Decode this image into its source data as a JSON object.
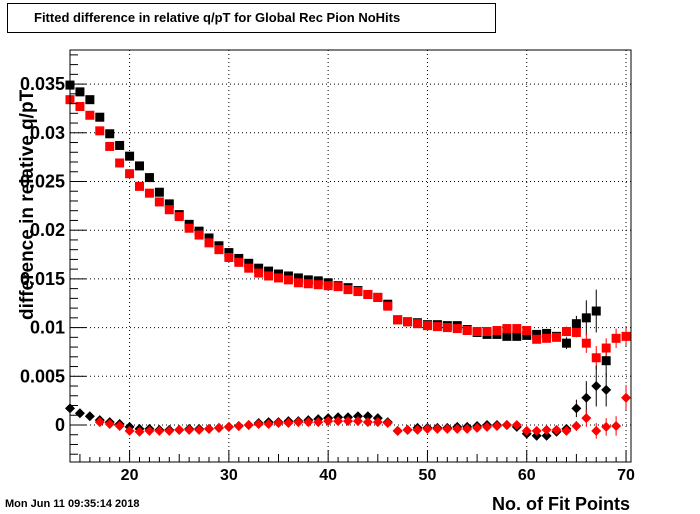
{
  "title": "Fitted difference in relative q/pT for Global Rec Pion NoHits",
  "footer": "Mon Jun 11 09:35:14 2018",
  "chart_data": {
    "type": "scatter",
    "title": "Fitted difference in relative q/pT for Global Rec Pion NoHits",
    "xlabel": "No. of Fit Points",
    "ylabel": "difference in relative q/pT",
    "xlim": [
      14,
      70.5
    ],
    "ylim": [
      -0.0038,
      0.0385
    ],
    "xticks": [
      "20",
      "30",
      "40",
      "50",
      "60",
      "70"
    ],
    "yticks": [
      "0",
      "0.005",
      "0.01",
      "0.015",
      "0.02",
      "0.025",
      "0.03",
      "0.035"
    ],
    "grid": true,
    "colors": {
      "black": "#000000",
      "red": "#ff0000"
    },
    "series": [
      {
        "marker": "square",
        "color": "#000000",
        "x": [
          14,
          15,
          16,
          17,
          18,
          19,
          20,
          21,
          22,
          23,
          24,
          25,
          26,
          27,
          28,
          29,
          30,
          31,
          32,
          33,
          34,
          35,
          36,
          37,
          38,
          39,
          40,
          41,
          42,
          43,
          44,
          45,
          46,
          47,
          48,
          49,
          50,
          51,
          52,
          53,
          54,
          55,
          56,
          57,
          58,
          59,
          60,
          61,
          62,
          63,
          64,
          65,
          66,
          67,
          68,
          69,
          70
        ],
        "y": [
          0.0349,
          0.0342,
          0.0334,
          0.0316,
          0.0299,
          0.0287,
          0.0276,
          0.0266,
          0.0254,
          0.0239,
          0.0227,
          0.0216,
          0.0206,
          0.0199,
          0.0192,
          0.0184,
          0.0177,
          0.0171,
          0.0166,
          0.0161,
          0.0158,
          0.0155,
          0.0153,
          0.0151,
          0.0149,
          0.0148,
          0.0146,
          0.0143,
          0.0141,
          0.0138,
          0.0134,
          0.0131,
          0.0124,
          0.0108,
          0.0106,
          0.0105,
          0.0103,
          0.0103,
          0.0102,
          0.0102,
          0.0098,
          0.0095,
          0.0093,
          0.0093,
          0.0091,
          0.0091,
          0.0092,
          0.0093,
          0.0094,
          0.0091,
          0.0084,
          0.0104,
          0.011,
          0.0117,
          0.0066,
          null,
          null
        ],
        "err": [
          0,
          0,
          0,
          0,
          0,
          0,
          0,
          0,
          0,
          0,
          0,
          0,
          0,
          0,
          0,
          0,
          0,
          0,
          0,
          0,
          0,
          0,
          0,
          0,
          0,
          0,
          0,
          0,
          0,
          0,
          0,
          0,
          0,
          0,
          0,
          0,
          0,
          0,
          0,
          0,
          0,
          0,
          0,
          0,
          0,
          0,
          0,
          0,
          0,
          0,
          0.0006,
          0.0008,
          0.0018,
          0.0022,
          0.0015,
          0,
          0
        ]
      },
      {
        "marker": "square",
        "color": "#ff0000",
        "x": [
          14,
          15,
          16,
          17,
          18,
          19,
          20,
          21,
          22,
          23,
          24,
          25,
          26,
          27,
          28,
          29,
          30,
          31,
          32,
          33,
          34,
          35,
          36,
          37,
          38,
          39,
          40,
          41,
          42,
          43,
          44,
          45,
          46,
          47,
          48,
          49,
          50,
          51,
          52,
          53,
          54,
          55,
          56,
          57,
          58,
          59,
          60,
          61,
          62,
          63,
          64,
          65,
          66,
          67,
          68,
          69,
          70
        ],
        "y": [
          0.0334,
          0.0327,
          0.0318,
          0.0302,
          0.0286,
          0.0269,
          0.0258,
          0.0245,
          0.0238,
          0.0229,
          0.0221,
          0.0214,
          0.0202,
          0.0195,
          0.0187,
          0.018,
          0.0172,
          0.0167,
          0.0161,
          0.0156,
          0.0153,
          0.0151,
          0.0149,
          0.0146,
          0.0145,
          0.0144,
          0.0143,
          0.0142,
          0.0139,
          0.0137,
          0.0134,
          0.0131,
          0.0122,
          0.0108,
          0.0106,
          0.0104,
          0.0102,
          0.0101,
          0.01,
          0.0099,
          0.0097,
          0.0096,
          0.0096,
          0.0097,
          0.0099,
          0.0099,
          0.0097,
          0.0088,
          0.0089,
          0.009,
          0.0096,
          0.0095,
          0.0084,
          0.0069,
          0.0079,
          0.0089,
          0.0091
        ],
        "err": [
          0,
          0,
          0,
          0,
          0,
          0,
          0,
          0,
          0,
          0,
          0,
          0,
          0,
          0,
          0,
          0,
          0,
          0,
          0,
          0,
          0,
          0,
          0,
          0,
          0,
          0,
          0,
          0,
          0,
          0,
          0,
          0,
          0,
          0,
          0,
          0,
          0,
          0,
          0,
          0,
          0,
          0,
          0,
          0,
          0,
          0,
          0,
          0,
          0,
          0,
          0.0005,
          0.0005,
          0.001,
          0.0012,
          0.001,
          0.001,
          0.001
        ]
      },
      {
        "marker": "diamond",
        "color": "#000000",
        "x": [
          14,
          15,
          16,
          17,
          18,
          19,
          20,
          21,
          22,
          23,
          24,
          25,
          26,
          27,
          28,
          29,
          30,
          31,
          32,
          33,
          34,
          35,
          36,
          37,
          38,
          39,
          40,
          41,
          42,
          43,
          44,
          45,
          46,
          47,
          48,
          49,
          50,
          51,
          52,
          53,
          54,
          55,
          56,
          57,
          58,
          59,
          60,
          61,
          62,
          63,
          64,
          65,
          66,
          67,
          68,
          69,
          70
        ],
        "y": [
          0.0017,
          0.0012,
          0.0009,
          0.0005,
          0.0003,
          0.0001,
          -0.0002,
          -0.0004,
          -0.0004,
          -0.0005,
          -0.0005,
          -0.0005,
          -0.0004,
          -0.0004,
          -0.0004,
          -0.0003,
          -0.0002,
          -0.0001,
          0.0,
          0.0002,
          0.0003,
          0.0003,
          0.0004,
          0.0004,
          0.0005,
          0.0006,
          0.0007,
          0.0008,
          0.0008,
          0.0009,
          0.0009,
          0.0007,
          0.0003,
          -0.0006,
          -0.0005,
          -0.0003,
          -0.0003,
          -0.0003,
          -0.0003,
          -0.0002,
          -0.0002,
          -0.0001,
          0.0,
          0.0,
          0.0,
          -0.0002,
          -0.0009,
          -0.0011,
          -0.0011,
          -0.0007,
          -0.0004,
          0.0017,
          0.0028,
          0.004,
          0.0036,
          null,
          null
        ],
        "err": [
          0,
          0,
          0,
          0,
          0,
          0,
          0,
          0,
          0,
          0,
          0,
          0,
          0,
          0,
          0,
          0,
          0,
          0,
          0,
          0,
          0,
          0,
          0,
          0,
          0,
          0,
          0,
          0,
          0,
          0,
          0,
          0,
          0,
          0,
          0,
          0,
          0,
          0,
          0,
          0,
          0,
          0,
          0,
          0,
          0,
          0,
          0,
          0,
          0,
          0,
          0.0004,
          0.0009,
          0.0017,
          0.0021,
          0.0017,
          0,
          0
        ]
      },
      {
        "marker": "diamond",
        "color": "#ff0000",
        "x": [
          14,
          15,
          16,
          17,
          18,
          19,
          20,
          21,
          22,
          23,
          24,
          25,
          26,
          27,
          28,
          29,
          30,
          31,
          32,
          33,
          34,
          35,
          36,
          37,
          38,
          39,
          40,
          41,
          42,
          43,
          44,
          45,
          46,
          47,
          48,
          49,
          50,
          51,
          52,
          53,
          54,
          55,
          56,
          57,
          58,
          59,
          60,
          61,
          62,
          63,
          64,
          65,
          66,
          67,
          68,
          69,
          70
        ],
        "y": [
          null,
          null,
          null,
          0.0003,
          0.0001,
          -0.0001,
          -0.0006,
          -0.0007,
          -0.0006,
          -0.0006,
          -0.0006,
          -0.0005,
          -0.0005,
          -0.0005,
          -0.0004,
          -0.0003,
          -0.0002,
          -0.0001,
          0.0,
          0.0001,
          0.0001,
          0.0002,
          0.0002,
          0.0003,
          0.0003,
          0.0003,
          0.0004,
          0.0004,
          0.0004,
          0.0004,
          0.0003,
          0.0003,
          0.0002,
          -0.0006,
          -0.0005,
          -0.0005,
          -0.0004,
          -0.0004,
          -0.0004,
          -0.0004,
          -0.0004,
          -0.0003,
          -0.0002,
          -0.0001,
          0.0,
          0.0,
          -0.0006,
          -0.0006,
          -0.0005,
          -0.0005,
          -0.0006,
          -0.0001,
          0.0007,
          -0.0006,
          -0.0002,
          -0.0001,
          0.0028
        ],
        "err": [
          0,
          0,
          0,
          0,
          0,
          0,
          0,
          0,
          0,
          0,
          0,
          0,
          0,
          0,
          0,
          0,
          0,
          0,
          0,
          0,
          0,
          0,
          0,
          0,
          0,
          0,
          0,
          0,
          0,
          0,
          0,
          0,
          0,
          0,
          0,
          0,
          0,
          0,
          0,
          0,
          0,
          0,
          0,
          0,
          0,
          0,
          0,
          0,
          0,
          0,
          0.0003,
          0.0005,
          0.0009,
          0.0008,
          0.0009,
          0.001,
          0.0013
        ]
      }
    ]
  }
}
